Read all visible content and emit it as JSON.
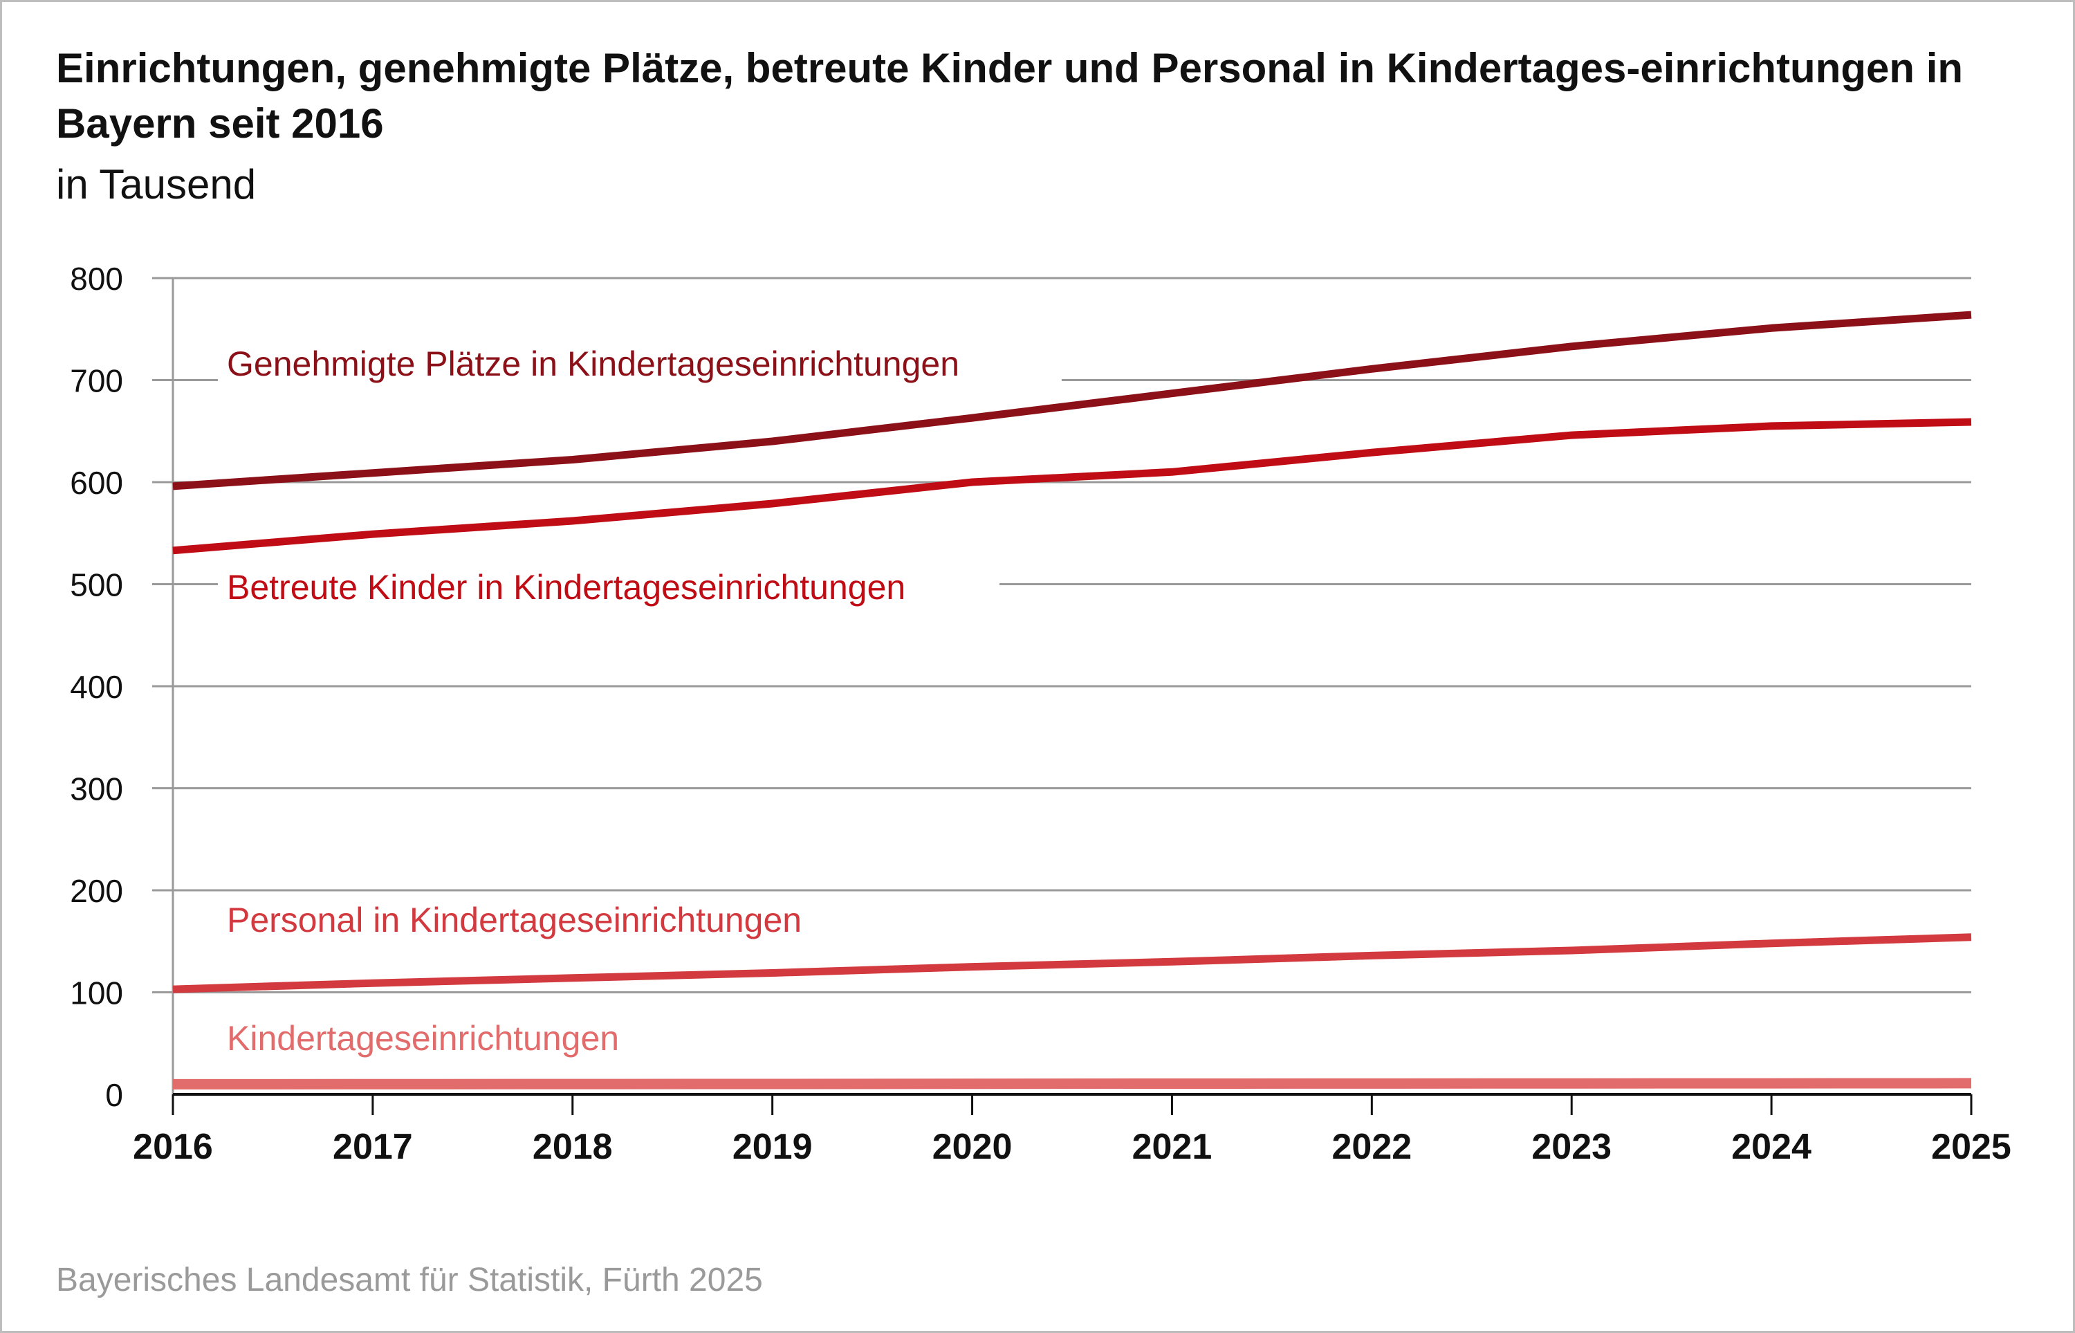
{
  "title": "Einrichtungen, genehmigte Plätze, betreute Kinder und Personal in Kindertages-einrichtungen in Bayern seit 2016",
  "subtitle": "in Tausend",
  "source": "Bayerisches Landesamt für Statistik, Fürth 2025",
  "colors": {
    "plaetze": "#8c1018",
    "kinder": "#c00d15",
    "personal": "#d23a3f",
    "einrichtungen": "#e26b6b",
    "grid": "#9a9a9a",
    "baseline": "#111111"
  },
  "chart_data": {
    "type": "line",
    "title": "Einrichtungen, genehmigte Plätze, betreute Kinder und Personal in Kindertages-einrichtungen in Bayern seit 2016",
    "subtitle": "in Tausend",
    "xlabel": "",
    "ylabel": "",
    "x": [
      "2016",
      "2017",
      "2018",
      "2019",
      "2020",
      "2021",
      "2022",
      "2023",
      "2024",
      "2025"
    ],
    "ylim": [
      0,
      800
    ],
    "yticks": [
      "0",
      "100",
      "200",
      "300",
      "400",
      "500",
      "600",
      "700",
      "800"
    ],
    "grid": true,
    "legend": "inline labels",
    "series": [
      {
        "name": "Genehmigte Plätze in Kindertageseinrichtungen",
        "color_key": "plaetze",
        "values": [
          596,
          609,
          622,
          640,
          663,
          687,
          711,
          733,
          751,
          764
        ]
      },
      {
        "name": "Betreute Kinder in Kindertageseinrichtungen",
        "color_key": "kinder",
        "values": [
          533,
          549,
          562,
          579,
          600,
          610,
          629,
          646,
          655,
          659
        ]
      },
      {
        "name": "Personal in Kindertageseinrichtungen",
        "color_key": "personal",
        "values": [
          103,
          109,
          114,
          119,
          125,
          130,
          136,
          141,
          148,
          154
        ]
      },
      {
        "name": "Kindertageseinrichtungen",
        "color_key": "einrichtungen",
        "values": [
          9.9,
          10.0,
          10.1,
          10.2,
          10.4,
          10.5,
          10.6,
          10.7,
          10.8,
          10.9
        ]
      }
    ]
  }
}
